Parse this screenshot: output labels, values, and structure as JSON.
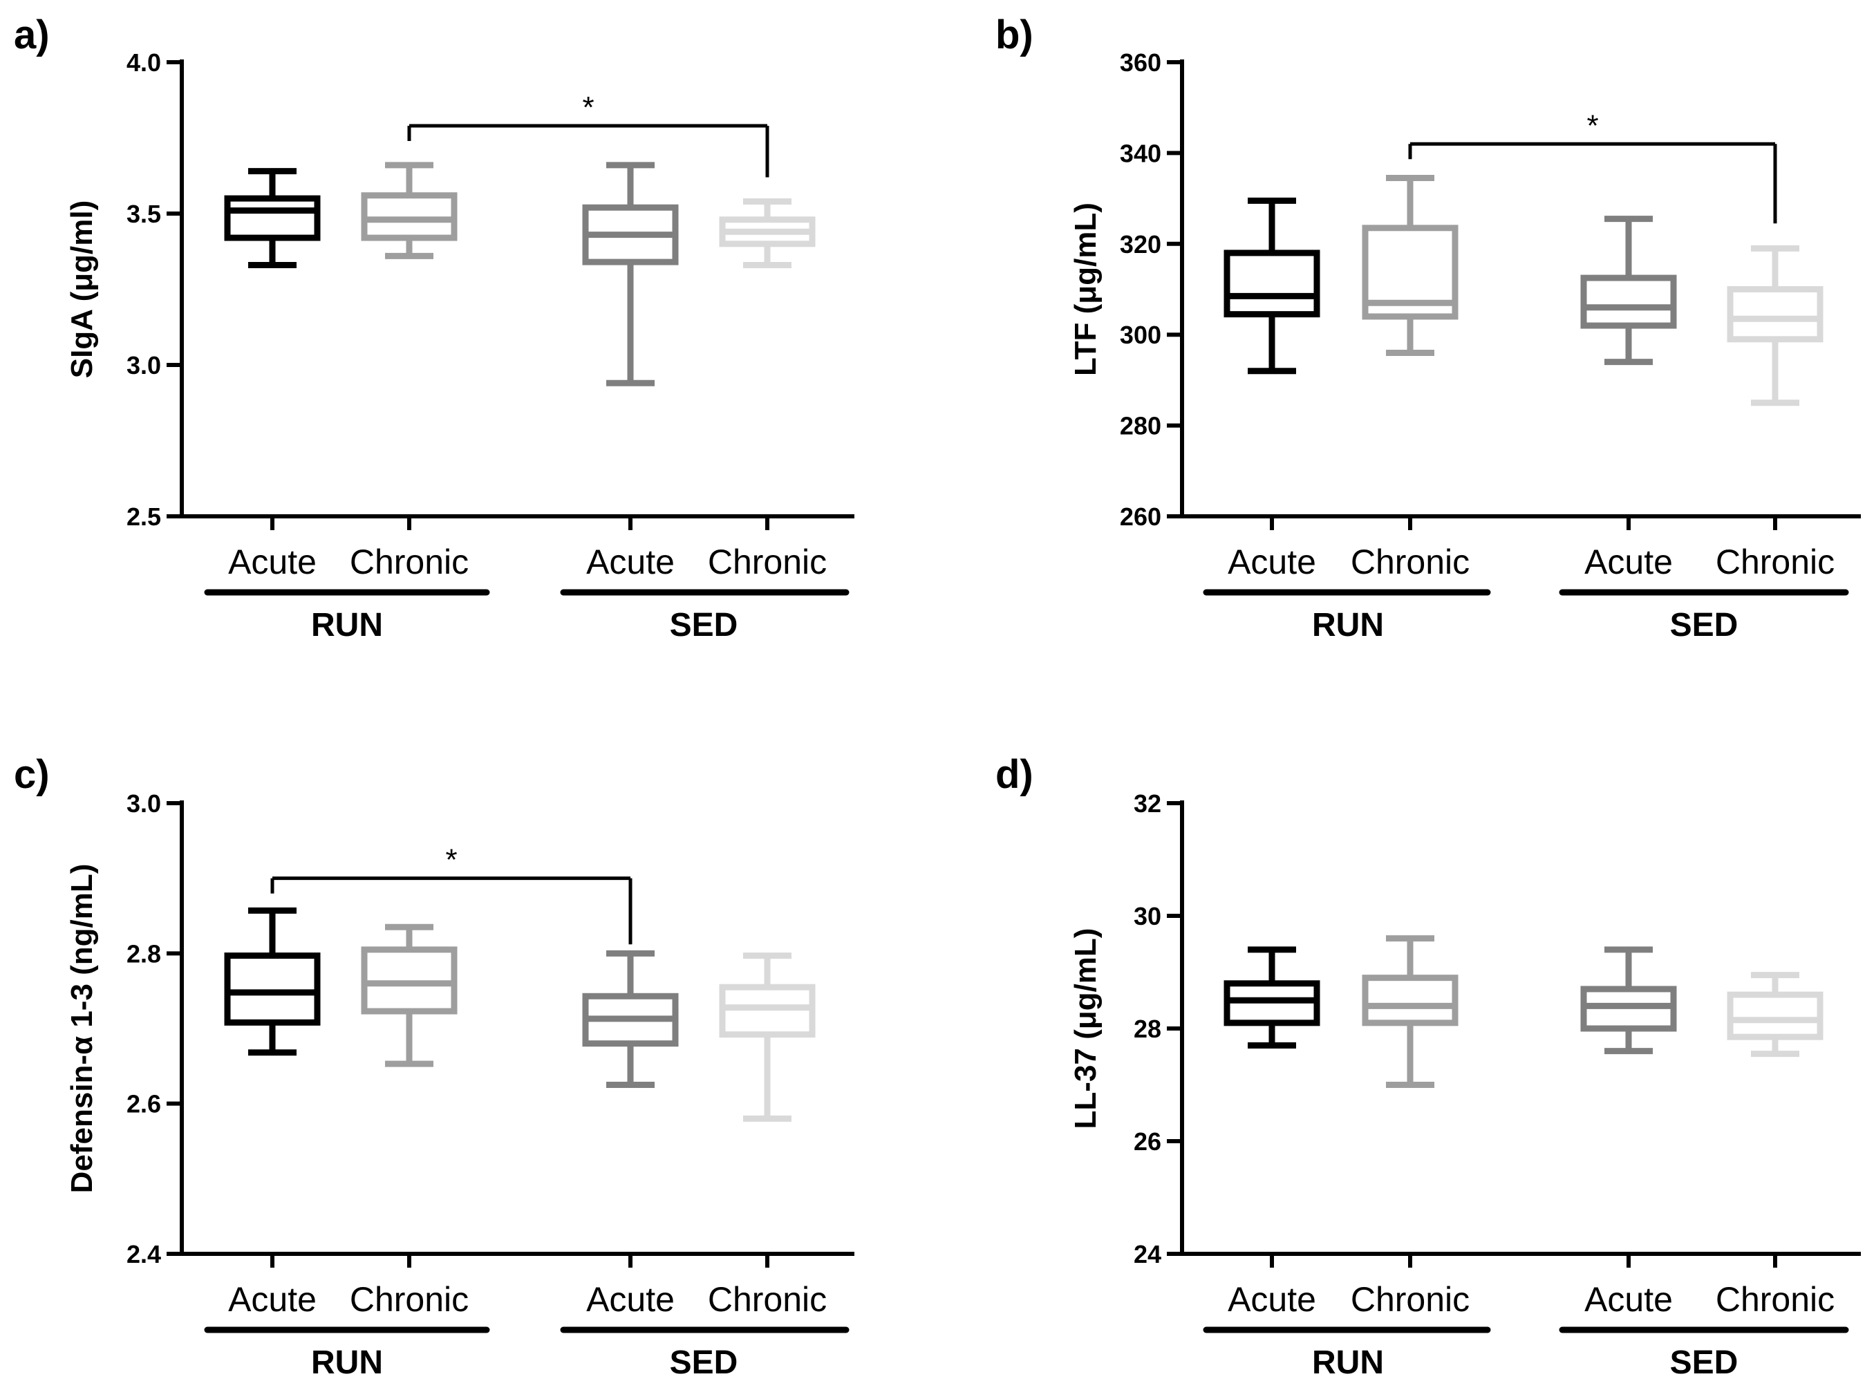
{
  "colors": [
    "#000000",
    "#9e9e9e",
    "#7f7f7f",
    "#d9d9d9"
  ],
  "chart_data": [
    {
      "type": "box",
      "panel_label": "a)",
      "ylabel": "SIgA (μg/ml)",
      "ylim": [
        2.5,
        4.0
      ],
      "yticks": [
        "2.5",
        "3.0",
        "3.5",
        "4.0"
      ],
      "categories": [
        "Acute",
        "Chronic",
        "Acute",
        "Chronic"
      ],
      "groups": [
        "RUN",
        "SED"
      ],
      "boxes": [
        {
          "min": 3.33,
          "q1": 3.42,
          "median": 3.51,
          "q3": 3.55,
          "max": 3.64
        },
        {
          "min": 3.36,
          "q1": 3.42,
          "median": 3.48,
          "q3": 3.56,
          "max": 3.66
        },
        {
          "min": 2.94,
          "q1": 3.34,
          "median": 3.43,
          "q3": 3.52,
          "max": 3.66
        },
        {
          "min": 3.33,
          "q1": 3.4,
          "median": 3.44,
          "q3": 3.48,
          "max": 3.54
        }
      ],
      "significance": {
        "from": 1,
        "to": 3,
        "y": 3.79,
        "drop_to": 3.62,
        "label": "*"
      }
    },
    {
      "type": "box",
      "panel_label": "b)",
      "ylabel": "LTF  (μg/mL)",
      "ylim": [
        260,
        360
      ],
      "yticks": [
        "260",
        "280",
        "300",
        "320",
        "340",
        "360"
      ],
      "categories": [
        "Acute",
        "Chronic",
        "Acute",
        "Chronic"
      ],
      "groups": [
        "RUN",
        "SED"
      ],
      "boxes": [
        {
          "min": 292,
          "q1": 304.5,
          "median": 308.5,
          "q3": 318,
          "max": 329.5
        },
        {
          "min": 296,
          "q1": 304,
          "median": 307,
          "q3": 323.5,
          "max": 334.5
        },
        {
          "min": 294,
          "q1": 302,
          "median": 306,
          "q3": 312.5,
          "max": 325.5
        },
        {
          "min": 285,
          "q1": 299,
          "median": 303.5,
          "q3": 310,
          "max": 319
        }
      ],
      "significance": {
        "from": 1,
        "to": 3,
        "y": 342,
        "drop_to": 324.5,
        "label": "*"
      }
    },
    {
      "type": "box",
      "panel_label": "c)",
      "ylabel": "Defensin-α 1-3 (ng/mL)",
      "ylim": [
        2.4,
        3.0
      ],
      "yticks": [
        "2.4",
        "2.6",
        "2.8",
        "3.0"
      ],
      "categories": [
        "Acute",
        "Chronic",
        "Acute",
        "Chronic"
      ],
      "groups": [
        "RUN",
        "SED"
      ],
      "boxes": [
        {
          "min": 2.668,
          "q1": 2.708,
          "median": 2.748,
          "q3": 2.797,
          "max": 2.857
        },
        {
          "min": 2.653,
          "q1": 2.723,
          "median": 2.76,
          "q3": 2.805,
          "max": 2.835
        },
        {
          "min": 2.625,
          "q1": 2.68,
          "median": 2.713,
          "q3": 2.743,
          "max": 2.8
        },
        {
          "min": 2.58,
          "q1": 2.692,
          "median": 2.728,
          "q3": 2.755,
          "max": 2.797
        }
      ],
      "significance": {
        "from": 0,
        "to": 2,
        "y": 2.9,
        "drop_to": 2.812,
        "label": "*"
      }
    },
    {
      "type": "box",
      "panel_label": "d)",
      "ylabel": "LL-37  (μg/mL)",
      "ylim": [
        24,
        32
      ],
      "yticks": [
        "24",
        "26",
        "28",
        "30",
        "32"
      ],
      "categories": [
        "Acute",
        "Chronic",
        "Acute",
        "Chronic"
      ],
      "groups": [
        "RUN",
        "SED"
      ],
      "boxes": [
        {
          "min": 27.7,
          "q1": 28.1,
          "median": 28.5,
          "q3": 28.8,
          "max": 29.4
        },
        {
          "min": 27.0,
          "q1": 28.1,
          "median": 28.4,
          "q3": 28.9,
          "max": 29.6
        },
        {
          "min": 27.6,
          "q1": 28.0,
          "median": 28.4,
          "q3": 28.7,
          "max": 29.4
        },
        {
          "min": 27.55,
          "q1": 27.85,
          "median": 28.15,
          "q3": 28.6,
          "max": 28.95
        }
      ]
    }
  ]
}
